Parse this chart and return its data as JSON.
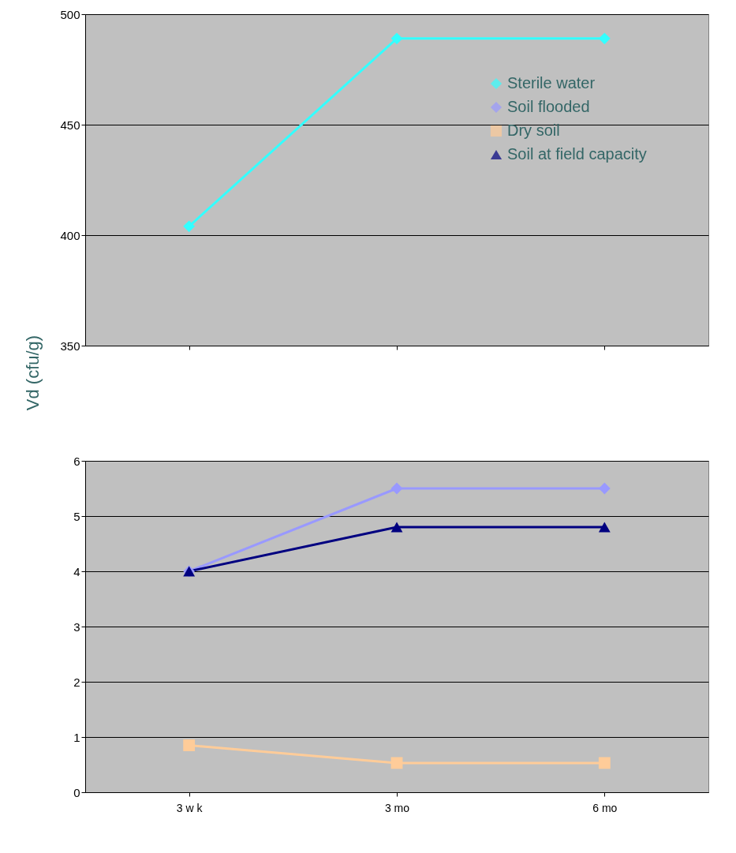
{
  "chart_data": [
    {
      "type": "line",
      "ylabel": "Vd (cfu/g)",
      "categories": [
        null,
        null,
        null
      ],
      "ylim": [
        350,
        500
      ],
      "yticks": [
        350,
        400,
        450,
        500
      ],
      "grid": "y",
      "tick_labels": "y",
      "legend": "top right",
      "series": [
        {
          "name": "Sterile water",
          "color": "#33ffff",
          "marker": "diamond",
          "values": [
            404,
            489,
            489
          ]
        }
      ]
    },
    {
      "type": "line",
      "categories": [
        "3 w k",
        "3 mo",
        "6 mo"
      ],
      "ylim": [
        0,
        6
      ],
      "yticks": [
        0,
        1,
        2,
        3,
        4,
        5,
        6
      ],
      "grid": "y",
      "legend": "top right",
      "series": [
        {
          "name": "Soil flooded",
          "color": "#9999ff",
          "marker": "diamond",
          "values": [
            4.0,
            5.5,
            5.5
          ]
        },
        {
          "name": "Dry soil",
          "color": "#ffcc99",
          "marker": "square",
          "values": [
            0.85,
            0.53,
            0.53
          ]
        },
        {
          "name": "Soil at field capacity",
          "color": "#000080",
          "marker": "triangle",
          "values": [
            4.0,
            4.8,
            4.8
          ]
        }
      ]
    }
  ]
}
